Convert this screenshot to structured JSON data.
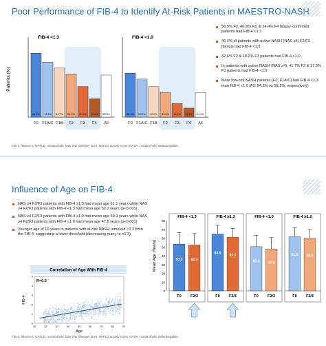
{
  "slide1": {
    "title": "Poor Performance of FIB-4 to Identify At-Risk Patients in MAESTRO-NASH",
    "bullets": [
      "56.9% F2, 40.3% F3, & 24.4% F4 biopsy-confirmed patients had FIB-4 <1.3",
      "46.4% of patients with active NASH (NAS ≥4) F2/F3 fibrosis had FIB-4 <1.3",
      "32.6% F2 & 18.0% F3 patients had FIB-4 <1.0",
      "In patients with active NASH (NAS ≥4), 41.7% F2 & 17.3% F3 patients had FIB-4 <1.0",
      "More low-risk NASH patients (F0, F1A/C) had FIB-4 <1.3 than FIB-4 <1.0 (F0: 84.3% vs 58.1%, respectively)"
    ],
    "footnote": "FIB-4, fibrosis-4; NAFLD, nonalcoholic fatty liver disease; NAS, NAFLD activity score; NASH, nonalcoholic steatohepatitis."
  },
  "slide2": {
    "title": "Influence of Age on FIB-4",
    "bullets": [
      "NAS ≥4 F2/F3 patients with FIB-4 ≥1.3 had mean age 61.1 years while NAS ≥4 F2/F3 patients with FIB-4 <1.3 had mean age 52.2 years (p<0.001)",
      "NAS ≥4 F2/F3 patients with FIB-4 ≥1.0 had mean age 59.9 years while NAS ≥4 F2/F3 patients with FIB-4 <1.0 had mean age 47.6 years (p<0.001)",
      "Younger age of 10 years in patients with at-risk NASH removed ~0.2 from the FIB-4, suggesting a lower threshold (decreasing many to <1.3)"
    ],
    "footnote": "FIB-4, fibrosis-4; NAFLD, nonalcoholic fatty liver disease; NAS, NAFLD activity score; NASH, nonalcoholic steatohepatitis."
  },
  "colors": {
    "title": "#1f6fb5",
    "bullet": "#e0531f",
    "f0": "#4a86d8",
    "f1a": "#9fc3ec",
    "f1b": "#f6d7bd",
    "f2": "#f0a77a",
    "f3": "#e06a35",
    "f4": "#b45a28",
    "all": "#ffffff",
    "highlight": "#d9e8f6"
  },
  "chart_data": [
    {
      "type": "bar",
      "title": "FIB-4 <1.3",
      "ylabel": "Patients (%)",
      "ylim": [
        0,
        100
      ],
      "categories": [
        "F0",
        "F1A/C",
        "F1B",
        "F2",
        "F3",
        "F4",
        "All"
      ],
      "values": [
        84.3,
        72.3,
        64.7,
        56.9,
        40.3,
        24.4,
        55.5
      ],
      "labels": [
        "84.3%",
        "72.3%",
        "64.7%",
        "56.9%",
        "40.3%",
        "24.4%",
        "55.5%"
      ],
      "highlight": [
        "F2",
        "F4"
      ]
    },
    {
      "type": "bar",
      "title": "FIB-4 <1.0",
      "ylim": [
        0,
        100
      ],
      "categories": [
        "F0",
        "F1A/C",
        "F1B",
        "F2",
        "F3",
        "F4",
        "All"
      ],
      "values": [
        58.1,
        50.2,
        40.2,
        32.6,
        18.0,
        11.9,
        32.5
      ],
      "labels": [
        "58.1%",
        "50.2%",
        "40.2%",
        "32.6%",
        "18.0%",
        "11.9%",
        "32.5%"
      ],
      "highlight": [
        "F2",
        "F4"
      ]
    },
    {
      "type": "bar",
      "ylabel": "Mean Age (Years)",
      "ylim": [
        0,
        80
      ],
      "yticks": [
        "0",
        "10",
        "20",
        "30",
        "40",
        "50",
        "60",
        "70",
        "80"
      ],
      "panels": [
        {
          "title": "FIB-4 <1.3",
          "categories": [
            "F0",
            "F2/3"
          ],
          "values": [
            53.3,
            52.2
          ],
          "errors": [
            13,
            13
          ]
        },
        {
          "title": "FIB-4 ≥1.3",
          "categories": [
            "F0",
            "F2/3"
          ],
          "values": [
            64.6,
            61.1
          ],
          "errors": [
            10,
            10
          ]
        },
        {
          "title": "FIB-4 <1.0",
          "categories": [
            "F0",
            "F2/3"
          ],
          "values": [
            50.3,
            47.6
          ],
          "errors": [
            13,
            13
          ]
        },
        {
          "title": "FIB-4 ≥1.0",
          "categories": [
            "F0",
            "F2/3"
          ],
          "values": [
            61.6,
            59.9
          ],
          "errors": [
            10,
            10
          ]
        }
      ]
    },
    {
      "type": "scatter",
      "title": "Correlation of Age With FIB-4",
      "annotation": "R=0.5",
      "xlabel": "Age",
      "ylabel": "FIB-4",
      "xlim": [
        10,
        90
      ],
      "ylim": [
        0,
        5
      ],
      "xticks": [
        "10",
        "20",
        "30",
        "40",
        "50",
        "60",
        "70",
        "80",
        "90"
      ],
      "yticks": [
        "0",
        "1",
        "2",
        "3",
        "4",
        "5"
      ],
      "trend": [
        [
          15,
          0.55
        ],
        [
          88,
          2.05
        ]
      ]
    }
  ]
}
